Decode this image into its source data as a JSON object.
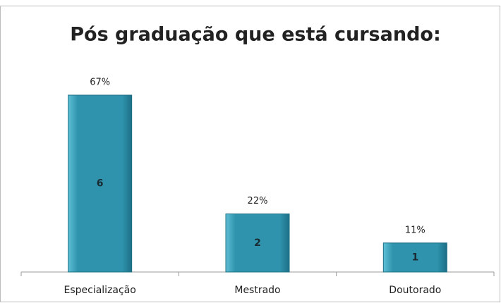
{
  "chart_data": {
    "type": "bar",
    "title": "Pós graduação que está cursando:",
    "categories": [
      "Especialização",
      "Mestrado",
      "Doutorado"
    ],
    "values": [
      67,
      22,
      11
    ],
    "value_labels": [
      "67%",
      "22%",
      "11%"
    ],
    "counts": [
      6,
      2,
      1
    ],
    "color": "#2f93ad"
  }
}
